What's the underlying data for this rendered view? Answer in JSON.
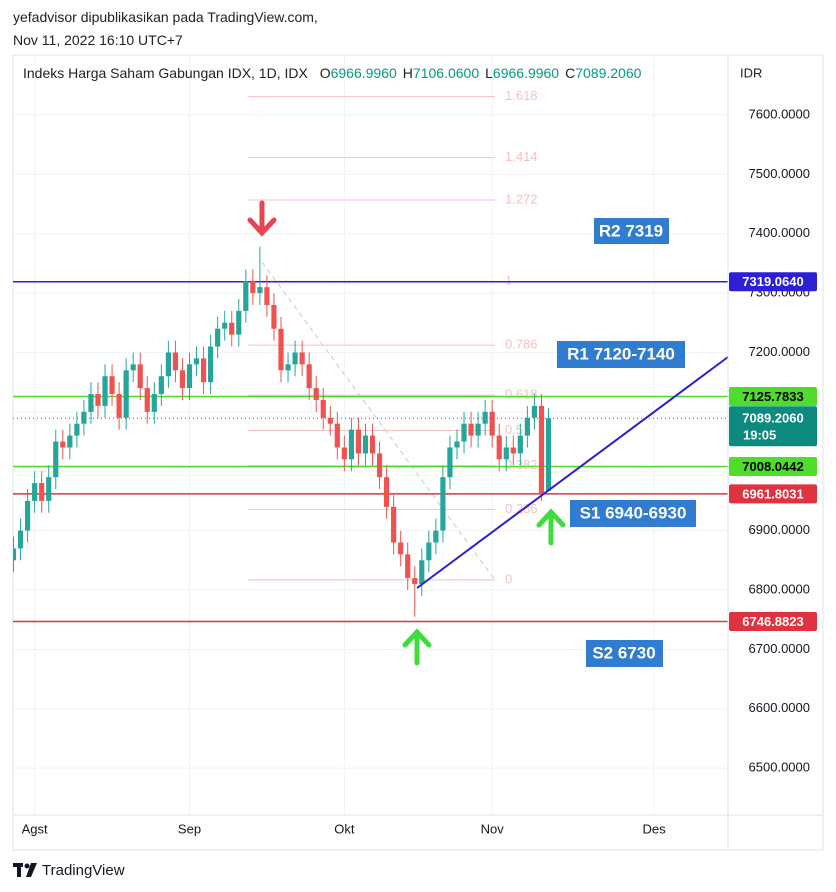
{
  "header": {
    "author_line": "yefadvisor dipublikasikan pada TradingView.com,",
    "timestamp": "Nov 11, 2022 16:10 UTC+7"
  },
  "footer": {
    "brand": "TradingView"
  },
  "chart_data": {
    "type": "candlestick",
    "legend": {
      "name": "Indeks Harga Saham Gabungan IDX, 1D, IDX",
      "ohlc": [
        {
          "key": "O",
          "value": "6966.9960"
        },
        {
          "key": "H",
          "value": "7106.0600"
        },
        {
          "key": "L",
          "value": "6966.9960"
        },
        {
          "key": "C",
          "value": "7089.2060"
        }
      ]
    },
    "currency": "IDR",
    "categories": [
      null,
      null,
      null,
      "Agst",
      null,
      null,
      null,
      null,
      null,
      null,
      null,
      null,
      null,
      null,
      null,
      null,
      null,
      null,
      null,
      null,
      null,
      null,
      null,
      null,
      null,
      "Sep",
      null,
      null,
      null,
      null,
      null,
      null,
      null,
      null,
      null,
      null,
      null,
      null,
      null,
      null,
      null,
      null,
      null,
      null,
      null,
      null,
      null,
      "Okt",
      null,
      null,
      null,
      null,
      null,
      null,
      null,
      null,
      null,
      null,
      null,
      null,
      null,
      null,
      null,
      null,
      null,
      null,
      null,
      null,
      "Nov",
      null,
      null,
      null,
      null,
      null,
      null,
      null,
      null,
      null,
      null,
      null,
      null,
      null,
      null,
      null,
      null,
      null,
      null,
      null,
      null,
      null,
      null,
      "Des",
      null,
      null,
      null,
      null,
      null,
      null,
      null,
      null,
      null,
      null
    ],
    "open": [
      6850,
      6870,
      6900,
      6950,
      6980,
      6950,
      6990,
      7050,
      7040,
      7060,
      7080,
      7100,
      7130,
      7110,
      7160,
      7130,
      7090,
      7170,
      7180,
      7140,
      7100,
      7130,
      7160,
      7200,
      7170,
      7140,
      7180,
      7190,
      7150,
      7210,
      7240,
      7250,
      7230,
      7270,
      7320,
      7300,
      7310,
      7280,
      7240,
      7170,
      7180,
      7200,
      7180,
      7140,
      7120,
      7090,
      7080,
      7040,
      7020,
      7070,
      7030,
      7060,
      7030,
      6990,
      6940,
      6880,
      6860,
      6820,
      6810,
      6850,
      6880,
      6900,
      6990,
      7040,
      7050,
      7080,
      7060,
      7080,
      7100,
      7060,
      7020,
      7040,
      7030,
      7060,
      7090,
      7110,
      6966.996,
      null,
      null,
      null,
      null,
      null,
      null,
      null,
      null,
      null,
      null,
      null,
      null,
      null,
      null,
      null,
      null,
      null,
      null,
      null,
      null,
      null,
      null,
      null,
      null,
      null
    ],
    "high": [
      6890,
      6920,
      6970,
      7000,
      7000,
      7010,
      7070,
      7070,
      7080,
      7100,
      7120,
      7150,
      7150,
      7180,
      7180,
      7150,
      7190,
      7200,
      7200,
      7160,
      7150,
      7180,
      7220,
      7220,
      7190,
      7200,
      7210,
      7210,
      7230,
      7260,
      7270,
      7270,
      7290,
      7340,
      7340,
      7378,
      7330,
      7300,
      7260,
      7200,
      7220,
      7220,
      7200,
      7160,
      7140,
      7110,
      7100,
      7060,
      7090,
      7090,
      7080,
      7080,
      7050,
      7010,
      6960,
      6900,
      6880,
      6840,
      6870,
      6900,
      6920,
      7010,
      7060,
      7070,
      7100,
      7100,
      7100,
      7120,
      7120,
      7080,
      7060,
      7060,
      7080,
      7110,
      7130,
      7130,
      7106.06,
      null,
      null,
      null,
      null,
      null,
      null,
      null,
      null,
      null,
      null,
      null,
      null,
      null,
      null,
      null,
      null,
      null,
      null,
      null,
      null,
      null,
      null,
      null,
      null,
      null
    ],
    "low": [
      6830,
      6850,
      6880,
      6930,
      6930,
      6930,
      6970,
      7020,
      7020,
      7040,
      7060,
      7080,
      7090,
      7090,
      7110,
      7070,
      7070,
      7150,
      7120,
      7080,
      7080,
      7110,
      7140,
      7150,
      7120,
      7120,
      7160,
      7130,
      7130,
      7190,
      7220,
      7210,
      7210,
      7250,
      7280,
      7280,
      7260,
      7220,
      7150,
      7150,
      7160,
      7160,
      7120,
      7100,
      7070,
      7060,
      7020,
      7000,
      7000,
      7010,
      7010,
      7010,
      6970,
      6920,
      6860,
      6840,
      6800,
      6755,
      6790,
      6830,
      6860,
      6880,
      6970,
      7020,
      7030,
      7040,
      7040,
      7060,
      7040,
      7000,
      7000,
      7010,
      7010,
      7040,
      7070,
      6950,
      6966.996,
      null,
      null,
      null,
      null,
      null,
      null,
      null,
      null,
      null,
      null,
      null,
      null,
      null,
      null,
      null,
      null,
      null,
      null,
      null,
      null,
      null,
      null,
      null,
      null,
      null
    ],
    "close": [
      6870,
      6900,
      6950,
      6980,
      6950,
      6990,
      7050,
      7040,
      7060,
      7080,
      7100,
      7130,
      7110,
      7160,
      7130,
      7090,
      7170,
      7180,
      7140,
      7100,
      7130,
      7160,
      7200,
      7170,
      7140,
      7180,
      7190,
      7150,
      7210,
      7240,
      7250,
      7230,
      7270,
      7320,
      7300,
      7310,
      7280,
      7240,
      7170,
      7180,
      7200,
      7180,
      7140,
      7120,
      7090,
      7080,
      7040,
      7020,
      7070,
      7030,
      7060,
      7030,
      6990,
      6940,
      6880,
      6860,
      6820,
      6810,
      6850,
      6880,
      6900,
      6990,
      7040,
      7050,
      7080,
      7060,
      7080,
      7100,
      7060,
      7020,
      7040,
      7030,
      7060,
      7090,
      7110,
      6962,
      7089.206,
      null,
      null,
      null,
      null,
      null,
      null,
      null,
      null,
      null,
      null,
      null,
      null,
      null,
      null,
      null,
      null,
      null,
      null,
      null,
      null,
      null,
      null,
      null,
      null,
      null
    ],
    "up_color": "#26a69a",
    "down_color": "#ef5350",
    "ylim": [
      6421,
      7701
    ],
    "yticks": [
      {
        "value": 7600,
        "label": "7600.0000"
      },
      {
        "value": 7500,
        "label": "7500.0000"
      },
      {
        "value": 7400,
        "label": "7400.0000"
      },
      {
        "value": 7300,
        "label": "7300.0000"
      },
      {
        "value": 7200,
        "label": "7200.0000"
      },
      {
        "value": 7100,
        "label": "7100.0000"
      },
      {
        "value": 7000,
        "label": "7000.0000"
      },
      {
        "value": 6900,
        "label": "6900.0000"
      },
      {
        "value": 6800,
        "label": "6800.0000"
      },
      {
        "value": 6700,
        "label": "6700.0000"
      },
      {
        "value": 6600,
        "label": "6600.0000"
      },
      {
        "value": 6500,
        "label": "6500.0000"
      }
    ],
    "grid": true,
    "fib": {
      "from": 6817,
      "to": 7320,
      "levels": [
        1.618,
        1.414,
        1.272,
        1,
        0.786,
        0.618,
        0.5,
        0.382,
        0.236,
        0
      ],
      "color": "#f4c2c2"
    },
    "levels": [
      {
        "value": 7319.064,
        "label": "7319.0640",
        "color": "#2d1fd6",
        "text_color": "#ffffff"
      },
      {
        "value": 7125.7833,
        "label": "7125.7833",
        "color": "#4fdd2c",
        "text_color": "#000000"
      },
      {
        "value": 7008.0442,
        "label": "7008.0442",
        "color": "#4fdd2c",
        "text_color": "#000000"
      },
      {
        "value": 6961.8031,
        "label": "6961.8031",
        "color": "#e0323f",
        "text_color": "#ffffff"
      },
      {
        "value": 6746.8823,
        "label": "6746.8823",
        "color": "#e0323f",
        "text_color": "#ffffff"
      }
    ],
    "last": {
      "value": 7089.206,
      "label": "7089.2060",
      "countdown": "19:05",
      "color": "#0b8a7d"
    },
    "annotations": [
      "R2 7319",
      "R1 7120-7140",
      "S1 6940-6930",
      "S2 6730"
    ]
  }
}
